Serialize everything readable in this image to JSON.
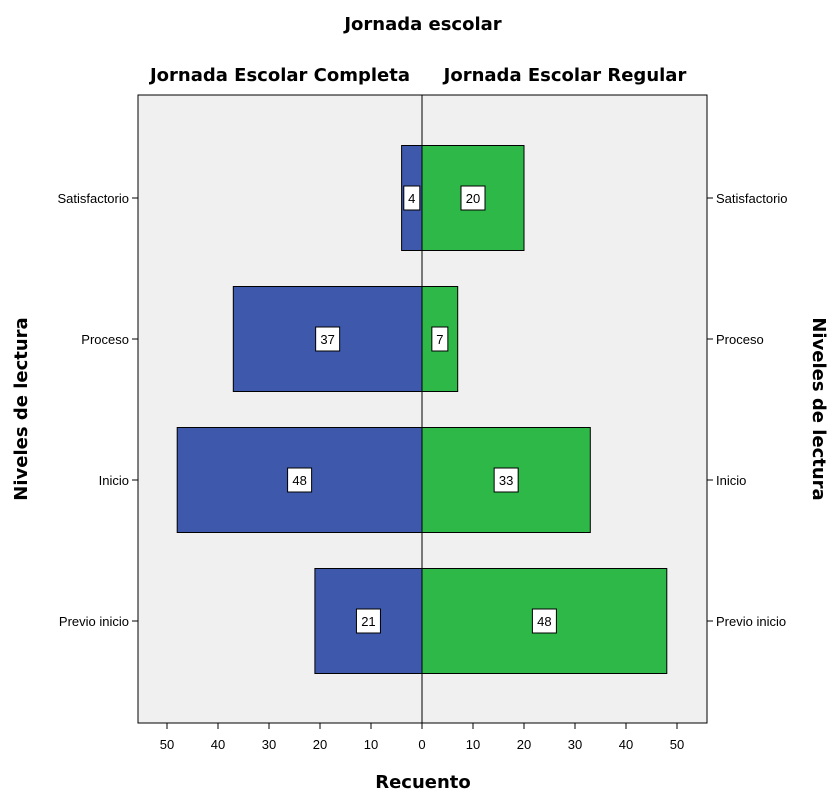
{
  "chart_data": {
    "type": "bar",
    "orientation": "horizontal-population-pyramid",
    "title": "Jornada escolar",
    "ylabel": "Niveles de lectura",
    "xlabel": "Recuento",
    "categories": [
      "Satisfactorio",
      "Proceso",
      "Inicio",
      "Previo inicio"
    ],
    "series": [
      {
        "name": "Jornada Escolar Completa",
        "side": "left",
        "color": "#3e58ac",
        "values": [
          4,
          37,
          48,
          21
        ]
      },
      {
        "name": "Jornada Escolar Regular",
        "side": "right",
        "color": "#2eb848",
        "values": [
          20,
          7,
          33,
          48
        ]
      }
    ],
    "xticks": [
      50,
      40,
      30,
      20,
      10,
      0,
      10,
      20,
      30,
      40,
      50
    ],
    "xlim": [
      -55,
      55
    ],
    "grid": false,
    "plot_background": "#f0f0f0"
  }
}
